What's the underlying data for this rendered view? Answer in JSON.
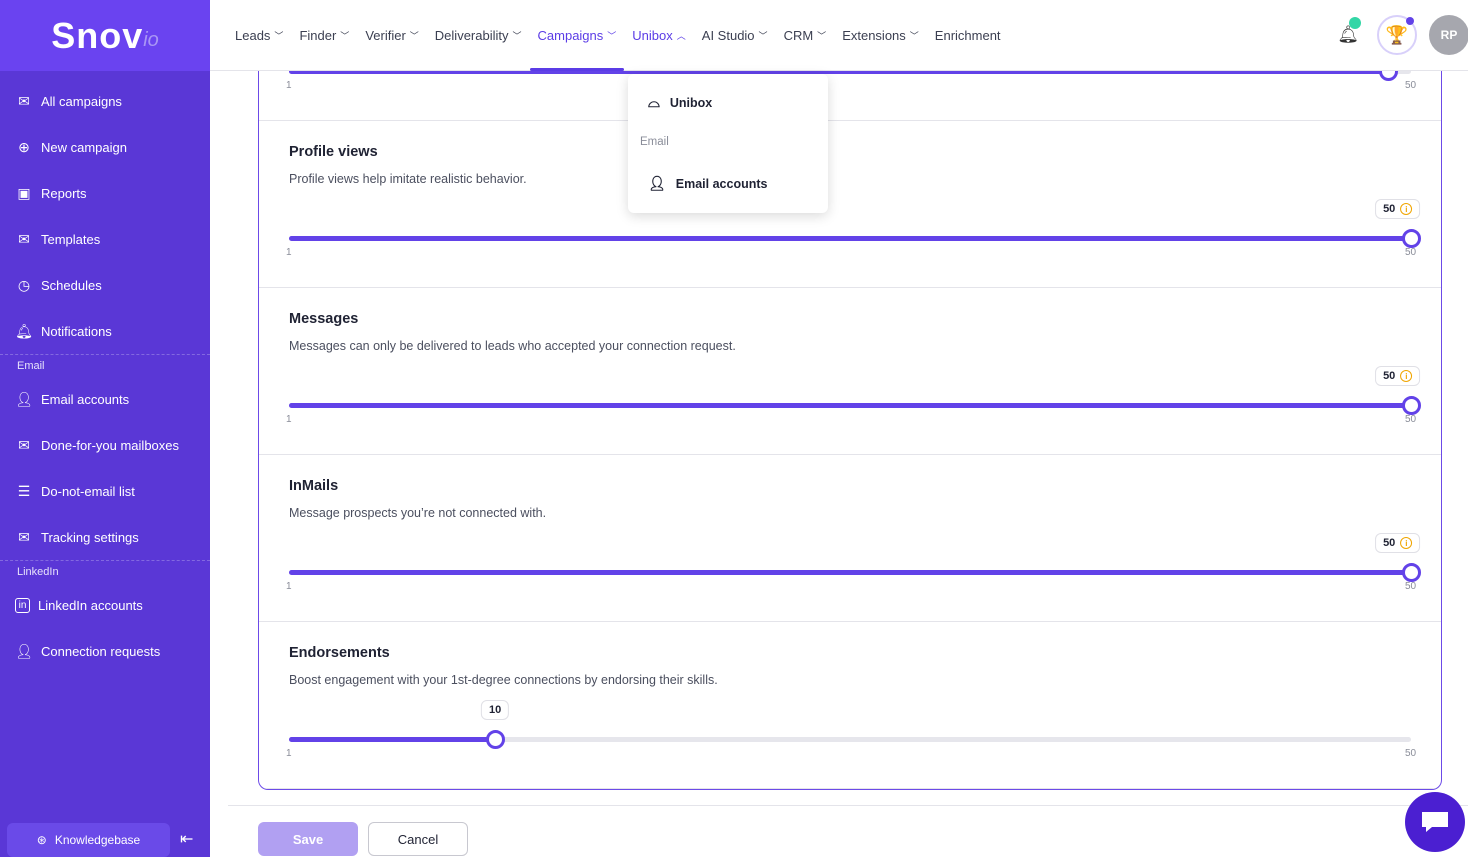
{
  "logo": {
    "main": "Snov",
    "suffix": "io"
  },
  "colors": {
    "sidebar": "#5a37d6",
    "accent": "#6242e8",
    "warning": "#f0a500",
    "online": "#33d6a6"
  },
  "sidebar": {
    "items": [
      {
        "label": "All campaigns",
        "icon": "envelope-icon"
      },
      {
        "label": "New campaign",
        "icon": "plus-circle-icon"
      },
      {
        "label": "Reports",
        "icon": "chart-icon"
      },
      {
        "label": "Templates",
        "icon": "template-icon"
      },
      {
        "label": "Schedules",
        "icon": "clock-icon"
      },
      {
        "label": "Notifications",
        "icon": "bell-icon"
      }
    ],
    "email_group": "Email",
    "email_items": [
      {
        "label": "Email accounts",
        "icon": "user-mail-icon"
      },
      {
        "label": "Done-for-you mailboxes",
        "icon": "mailbox-icon"
      },
      {
        "label": "Do-not-email list",
        "icon": "list-icon"
      },
      {
        "label": "Tracking settings",
        "icon": "tracking-icon"
      }
    ],
    "linkedin_group": "LinkedIn",
    "linkedin_items": [
      {
        "label": "LinkedIn accounts",
        "icon": "linkedin-icon"
      },
      {
        "label": "Connection requests",
        "icon": "user-plus-icon"
      }
    ],
    "knowledgebase": "Knowledgebase"
  },
  "nav": [
    "Leads",
    "Finder",
    "Verifier",
    "Deliverability",
    "Campaigns",
    "Unibox",
    "AI Studio",
    "CRM",
    "Extensions",
    "Enrichment"
  ],
  "header": {
    "avatar": "RP"
  },
  "dropdown": {
    "unibox": "Unibox",
    "group": "Email",
    "email_accounts": "Email accounts"
  },
  "sliders": [
    {
      "title": "",
      "description": "",
      "value": 49,
      "min": "1",
      "max": "50",
      "show_bubble": false
    },
    {
      "title": "Profile views",
      "description": "Profile views help imitate realistic behavior.",
      "value": 50,
      "min": "1",
      "max": "50",
      "bubble": "50",
      "warning": true
    },
    {
      "title": "Messages",
      "description": "Messages can only be delivered to leads who accepted your connection request.",
      "value": 50,
      "min": "1",
      "max": "50",
      "bubble": "50",
      "warning": true
    },
    {
      "title": "InMails",
      "description": "Message prospects you’re not connected with.",
      "value": 50,
      "min": "1",
      "max": "50",
      "bubble": "50",
      "warning": true
    },
    {
      "title": "Endorsements",
      "description": "Boost engagement with your 1st-degree connections by endorsing their skills.",
      "value": 10,
      "min": "1",
      "max": "50",
      "bubble": "10",
      "warning": false
    }
  ],
  "footer": {
    "save": "Save",
    "cancel": "Cancel"
  }
}
